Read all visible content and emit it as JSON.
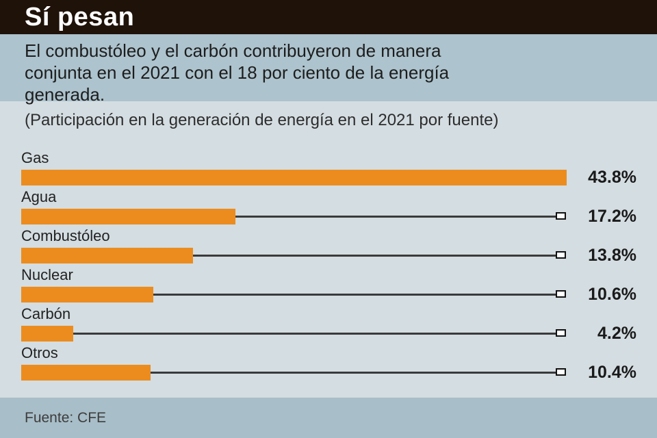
{
  "header": {
    "title": "Sí pesan"
  },
  "intro": {
    "lines": [
      "El combustóleo y el carbón contribuyeron de manera",
      "conjunta en el 2021 con el 18 por ciento de la energía",
      "generada."
    ]
  },
  "chart_data": {
    "type": "bar",
    "orientation": "horizontal",
    "subtitle": "(Participación en la generación de energía en el 2021 por fuente)",
    "categories": [
      "Gas",
      "Agua",
      "Combustóleo",
      "Nuclear",
      "Carbón",
      "Otros"
    ],
    "values": [
      43.8,
      17.2,
      13.8,
      10.6,
      4.2,
      10.4
    ],
    "value_labels": [
      "43.8%",
      "17.2%",
      "13.8%",
      "10.6%",
      "4.2%",
      "10.4%"
    ],
    "xlim": [
      0,
      43.8
    ],
    "grid": false,
    "legend": false,
    "bar_color": "#ec8c1e",
    "leader_line_color": "#3a3a3a",
    "marker_style": "white-square-outline"
  },
  "footer": {
    "source": "Fuente: CFE"
  },
  "colors": {
    "header_bg": "#1f1209",
    "header_text": "#ffffff",
    "intro_bg": "#adc3cd",
    "chart_bg": "#d4dde1",
    "footer_bg": "#a8bec8",
    "body_text": "#1d1d1d"
  }
}
